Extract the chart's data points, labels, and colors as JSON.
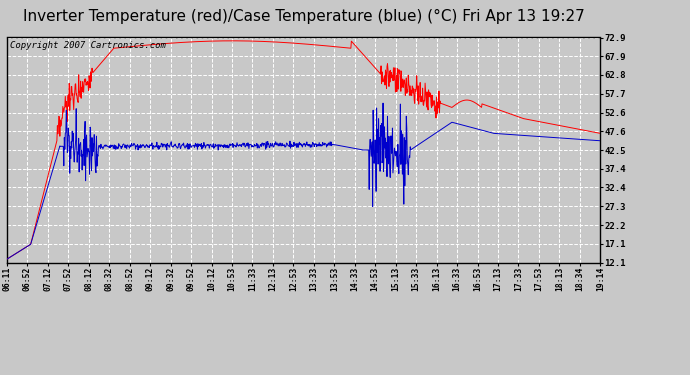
{
  "title": "Inverter Temperature (red)/Case Temperature (blue) (°C) Fri Apr 13 19:27",
  "copyright": "Copyright 2007 Cartronics.com",
  "yticks": [
    12.1,
    17.1,
    22.2,
    27.3,
    32.4,
    37.4,
    42.5,
    47.6,
    52.6,
    57.7,
    62.8,
    67.9,
    72.9
  ],
  "xtick_labels": [
    "06:11",
    "06:52",
    "07:12",
    "07:52",
    "08:12",
    "08:32",
    "08:52",
    "09:12",
    "09:32",
    "09:52",
    "10:12",
    "10:53",
    "11:33",
    "12:13",
    "12:53",
    "13:33",
    "13:53",
    "14:33",
    "14:53",
    "15:13",
    "15:33",
    "16:13",
    "16:33",
    "16:53",
    "17:13",
    "17:33",
    "17:53",
    "18:13",
    "18:34",
    "19:14"
  ],
  "ylim": [
    12.1,
    72.9
  ],
  "bg_color": "#c8c8c8",
  "plot_bg_color": "#c8c8c8",
  "grid_color": "#ffffff",
  "red_color": "#ff0000",
  "blue_color": "#0000cc",
  "title_fontsize": 11,
  "copyright_fontsize": 6.5
}
